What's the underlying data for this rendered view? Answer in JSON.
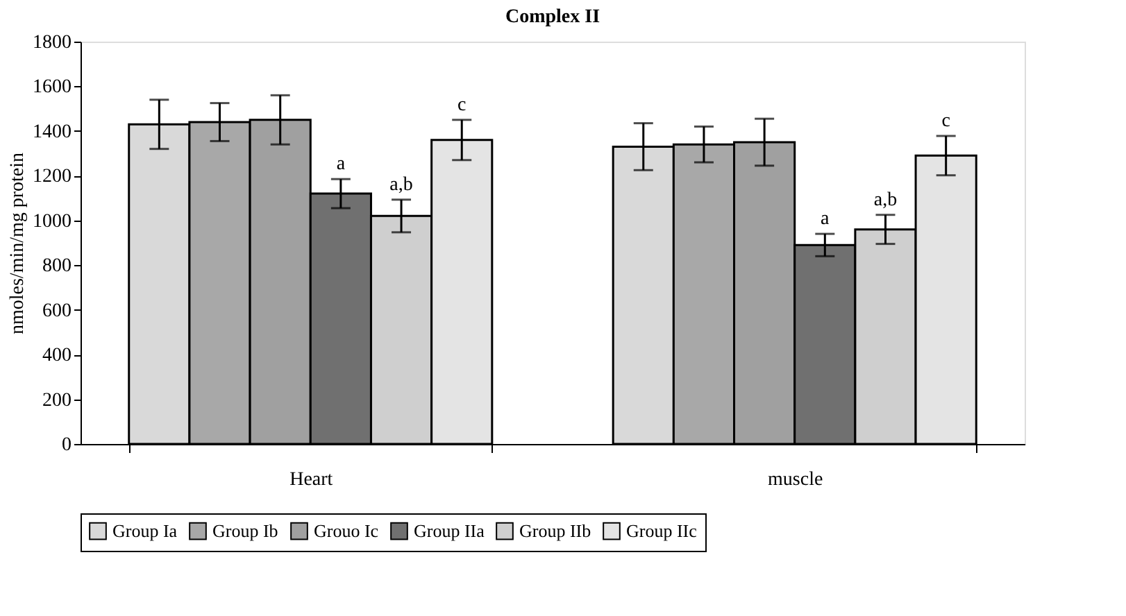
{
  "chart_data": {
    "type": "bar",
    "title": "Complex II",
    "ylabel": "nmoles/min/mg protein",
    "categories": [
      "Heart",
      "muscle"
    ],
    "series": [
      {
        "name": "Group Ia",
        "color": "#d9d9d9",
        "values": [
          1430,
          1330
        ],
        "errors": [
          110,
          105
        ]
      },
      {
        "name": "Group Ib",
        "color": "#a8a8a8",
        "values": [
          1440,
          1340
        ],
        "errors": [
          85,
          80
        ]
      },
      {
        "name": "Grouo Ic",
        "color": "#a0a0a0",
        "values": [
          1450,
          1350
        ],
        "errors": [
          110,
          105
        ]
      },
      {
        "name": "Group IIa",
        "color": "#707070",
        "values": [
          1120,
          890
        ],
        "errors": [
          65,
          50
        ],
        "value_labels": [
          "a",
          "a"
        ]
      },
      {
        "name": "Group IIb",
        "color": "#cfcfcf",
        "values": [
          1020,
          960
        ],
        "errors": [
          73,
          65
        ],
        "value_labels": [
          "a,b",
          "a,b"
        ]
      },
      {
        "name": "Group IIc",
        "color": "#e4e4e4",
        "values": [
          1360,
          1290
        ],
        "errors": [
          90,
          88
        ],
        "value_labels": [
          "c",
          "c"
        ]
      }
    ],
    "ylim": [
      0,
      1800
    ],
    "yticks": [
      0,
      200,
      400,
      600,
      800,
      1000,
      1200,
      1400,
      1600,
      1800
    ],
    "grid": false,
    "legend": "bottom"
  }
}
